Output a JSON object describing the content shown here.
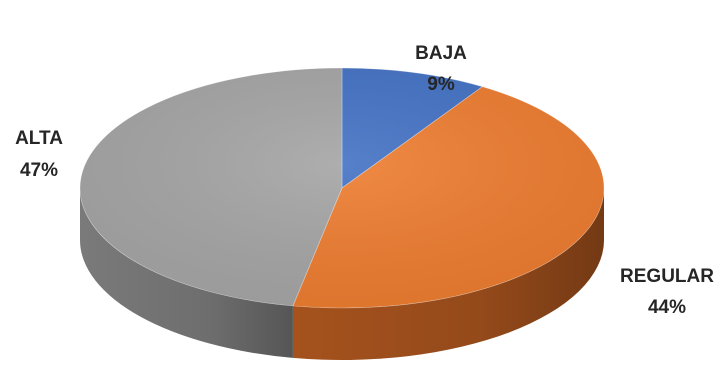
{
  "chart_data": {
    "type": "pie",
    "style": "3d",
    "title": "",
    "slices": [
      {
        "name": "BAJA",
        "label": "BAJA",
        "value": 9,
        "value_label": "9%",
        "color": "#4472C4",
        "side_color": "#2f5597"
      },
      {
        "name": "REGULAR",
        "label": "REGULAR",
        "value": 44,
        "value_label": "44%",
        "color": "#ED7D31",
        "side_color": "#a5521d"
      },
      {
        "name": "ALTA",
        "label": "ALTA",
        "value": 47,
        "value_label": "47%",
        "color": "#A5A5A5",
        "side_color": "#7a7a7a"
      }
    ],
    "start": "top",
    "direction": "clockwise",
    "legend": "none",
    "data_labels": "outside"
  }
}
